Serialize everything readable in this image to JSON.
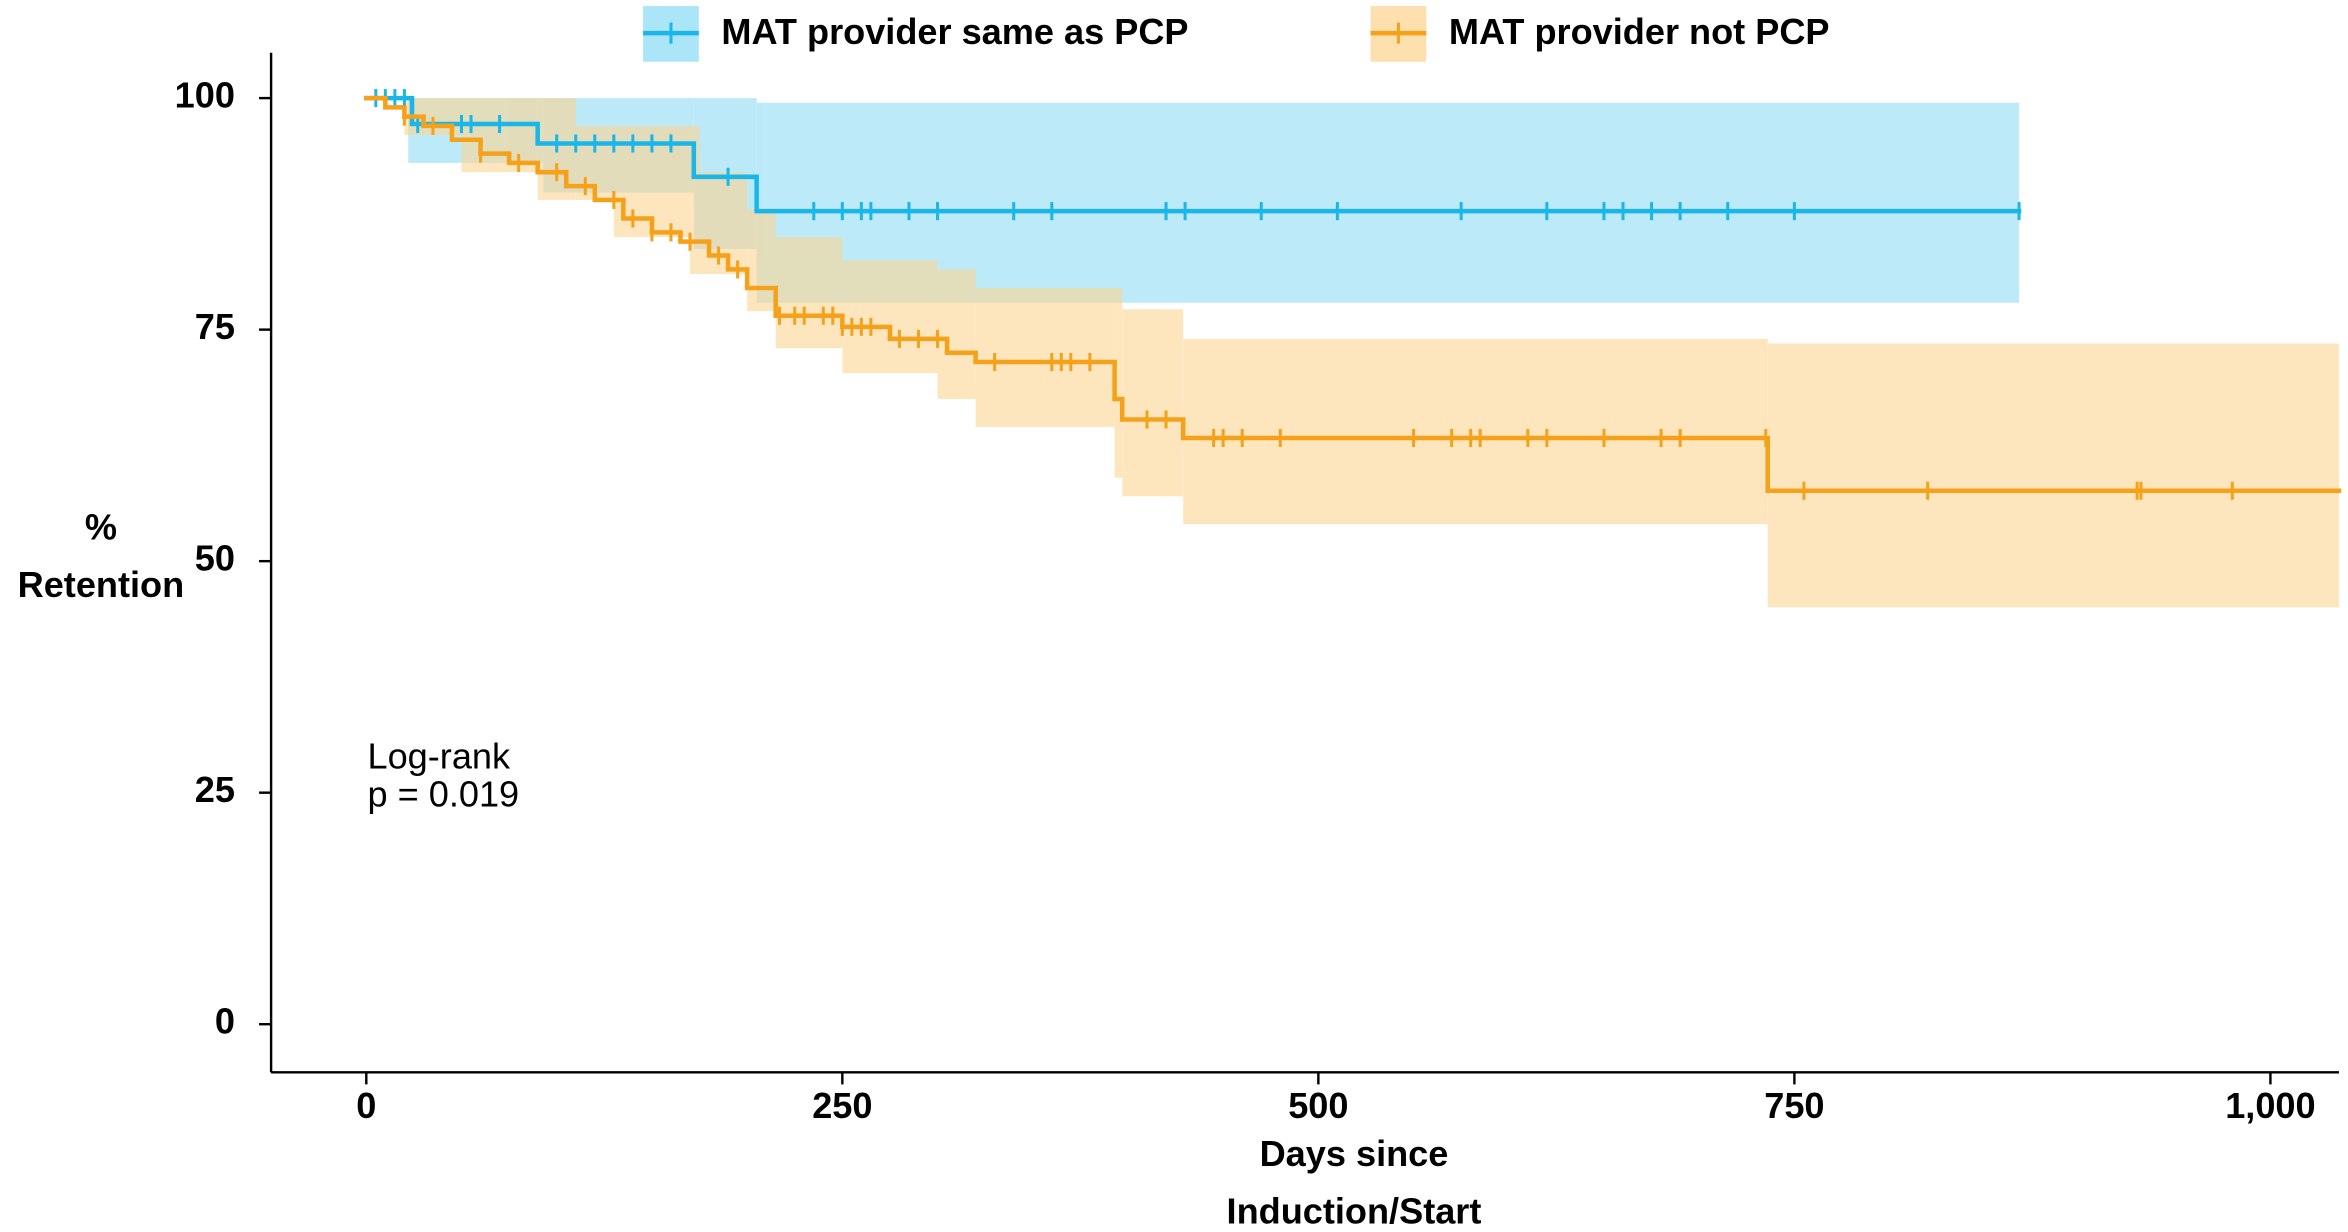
{
  "chart_data": {
    "type": "kaplan-meier",
    "xlabel": [
      "Days since",
      "Induction/Start"
    ],
    "ylabel": [
      "%",
      "Retention"
    ],
    "annotation": [
      "Log-rank",
      "p = 0.019"
    ],
    "xlim": [
      -50,
      1036
    ],
    "ylim": [
      -5.2,
      104.9
    ],
    "xticks": [
      0,
      250,
      500,
      750,
      {
        "value": 1000,
        "label": "1,000"
      }
    ],
    "yticks": [
      0,
      25,
      50,
      75,
      100
    ],
    "legend": "top",
    "series": [
      {
        "name": "MAT provider same as PCP",
        "color": "#1ab6e8",
        "band_color": "#8fdcf5",
        "x": [
          0,
          24,
          90,
          172,
          205
        ],
        "values": [
          100,
          97.2,
          95.1,
          91.5,
          87.8
        ],
        "end": 868,
        "band_x": [
          0,
          22,
          93,
          172,
          205
        ],
        "band_lower": [
          100,
          93,
          89.8,
          83.7,
          77.9
        ],
        "band_upper": [
          100,
          100,
          100,
          100,
          99.5
        ],
        "censored": [
          5,
          10,
          15,
          20,
          27,
          50,
          55,
          70,
          100,
          110,
          120,
          130,
          140,
          150,
          160,
          190,
          235,
          250,
          260,
          265,
          285,
          300,
          340,
          360,
          420,
          430,
          470,
          510,
          575,
          620,
          650,
          660,
          675,
          690,
          715,
          750,
          868
        ]
      },
      {
        "name": "MAT provider not PCP",
        "color": "#f5a11a",
        "band_color": "#fcd593",
        "x": [
          0,
          10,
          20,
          30,
          45,
          60,
          75,
          90,
          105,
          120,
          135,
          150,
          165,
          180,
          190,
          200,
          215,
          250,
          275,
          305,
          320,
          393,
          397,
          429,
          736
        ],
        "values": [
          100,
          99,
          98,
          97,
          95.5,
          94,
          93,
          92,
          90.5,
          89,
          87,
          85.5,
          84.5,
          83,
          81.5,
          79.5,
          76.5,
          75.3,
          74,
          72.5,
          71.5,
          67.5,
          65.3,
          63.3,
          57.6
        ],
        "end": 1036,
        "band_x": [
          0,
          20,
          50,
          90,
          110,
          130,
          170,
          175,
          200,
          215,
          250,
          300,
          320,
          393,
          397,
          429,
          736
        ],
        "band_lower": [
          100,
          96,
          92,
          89,
          89,
          85,
          81,
          81,
          77,
          73,
          70.3,
          67.5,
          64.5,
          59,
          57,
          54,
          45
        ],
        "band_upper": [
          100,
          100,
          100,
          100,
          97,
          97,
          97,
          92,
          88,
          85,
          82.5,
          81.5,
          79.5,
          79.5,
          77.2,
          74,
          73.5
        ],
        "censored": [
          20,
          35,
          60,
          80,
          100,
          115,
          130,
          140,
          150,
          160,
          170,
          185,
          195,
          217,
          225,
          230,
          240,
          245,
          250,
          255,
          260,
          265,
          280,
          290,
          300,
          330,
          360,
          365,
          370,
          380,
          410,
          420,
          445,
          450,
          460,
          480,
          550,
          570,
          580,
          585,
          610,
          620,
          650,
          680,
          690,
          735,
          755,
          820,
          930,
          932,
          980
        ]
      }
    ]
  }
}
